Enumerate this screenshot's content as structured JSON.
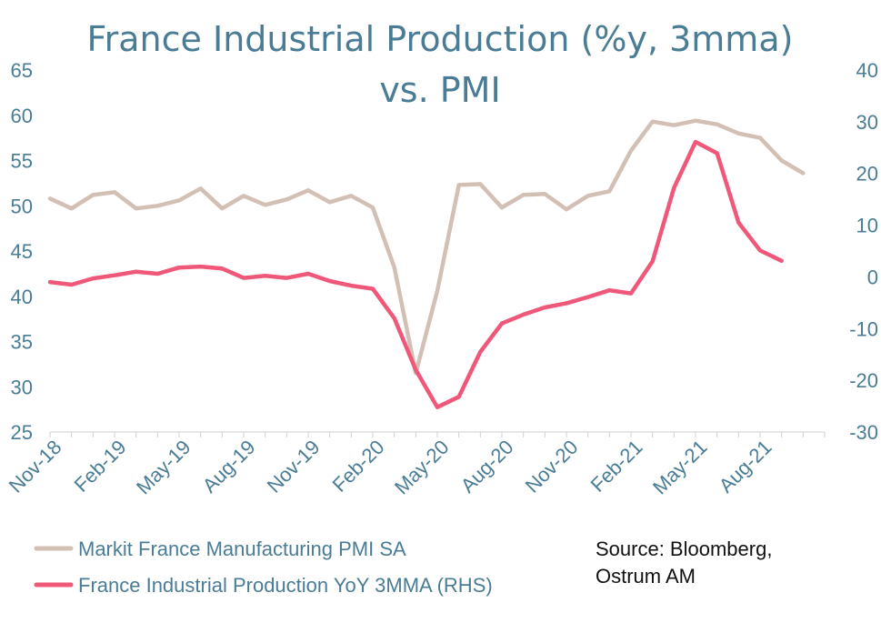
{
  "chart_data": {
    "type": "line",
    "title_lines": [
      "France Industrial Production (%y, 3mma)",
      "vs. PMI"
    ],
    "x": [
      "Nov-18",
      "Dec-18",
      "Jan-19",
      "Feb-19",
      "Mar-19",
      "Apr-19",
      "May-19",
      "Jun-19",
      "Jul-19",
      "Aug-19",
      "Sep-19",
      "Oct-19",
      "Nov-19",
      "Dec-19",
      "Jan-20",
      "Feb-20",
      "Mar-20",
      "Apr-20",
      "May-20",
      "Jun-20",
      "Jul-20",
      "Aug-20",
      "Sep-20",
      "Oct-20",
      "Nov-20",
      "Dec-20",
      "Jan-21",
      "Feb-21",
      "Mar-21",
      "Apr-21",
      "May-21",
      "Jun-21",
      "Jul-21",
      "Aug-21",
      "Sep-21",
      "Oct-21",
      "Nov-21"
    ],
    "x_tick_labels": [
      "Nov-18",
      "Feb-19",
      "May-19",
      "Aug-19",
      "Nov-19",
      "Feb-20",
      "May-20",
      "Aug-20",
      "Nov-20",
      "Feb-21",
      "May-21",
      "Aug-21"
    ],
    "y_left": {
      "min": 25,
      "max": 65,
      "step": 5
    },
    "y_right": {
      "min": -30,
      "max": 40,
      "step": 10
    },
    "series": [
      {
        "name": "Markit France Manufacturing PMI SA",
        "axis": "left",
        "color": "#d3c0b5",
        "values": [
          50.8,
          49.7,
          51.2,
          51.5,
          49.7,
          50.0,
          50.6,
          51.9,
          49.7,
          51.1,
          50.1,
          50.7,
          51.7,
          50.4,
          51.1,
          49.8,
          43.2,
          31.5,
          40.6,
          52.3,
          52.4,
          49.8,
          51.2,
          51.3,
          49.6,
          51.1,
          51.6,
          56.1,
          59.3,
          58.9,
          59.4,
          59.0,
          58.0,
          57.5,
          55.0,
          53.6,
          null
        ]
      },
      {
        "name": "France Industrial Production YoY 3MMA (RHS)",
        "axis": "right",
        "color": "#ef5879",
        "values": [
          -1.0,
          -1.5,
          -0.3,
          0.3,
          1.0,
          0.6,
          1.8,
          2.0,
          1.6,
          -0.2,
          0.2,
          -0.2,
          0.6,
          -0.8,
          -1.7,
          -2.3,
          -8.0,
          -18.0,
          -25.2,
          -23.2,
          -14.5,
          -9.0,
          -7.3,
          -5.9,
          -5.1,
          -3.9,
          -2.6,
          -3.2,
          3.0,
          17.2,
          26.1,
          23.9,
          10.5,
          5.1,
          3.1,
          null,
          null
        ]
      }
    ],
    "source": [
      "Source: Bloomberg,",
      "Ostrum AM"
    ]
  }
}
